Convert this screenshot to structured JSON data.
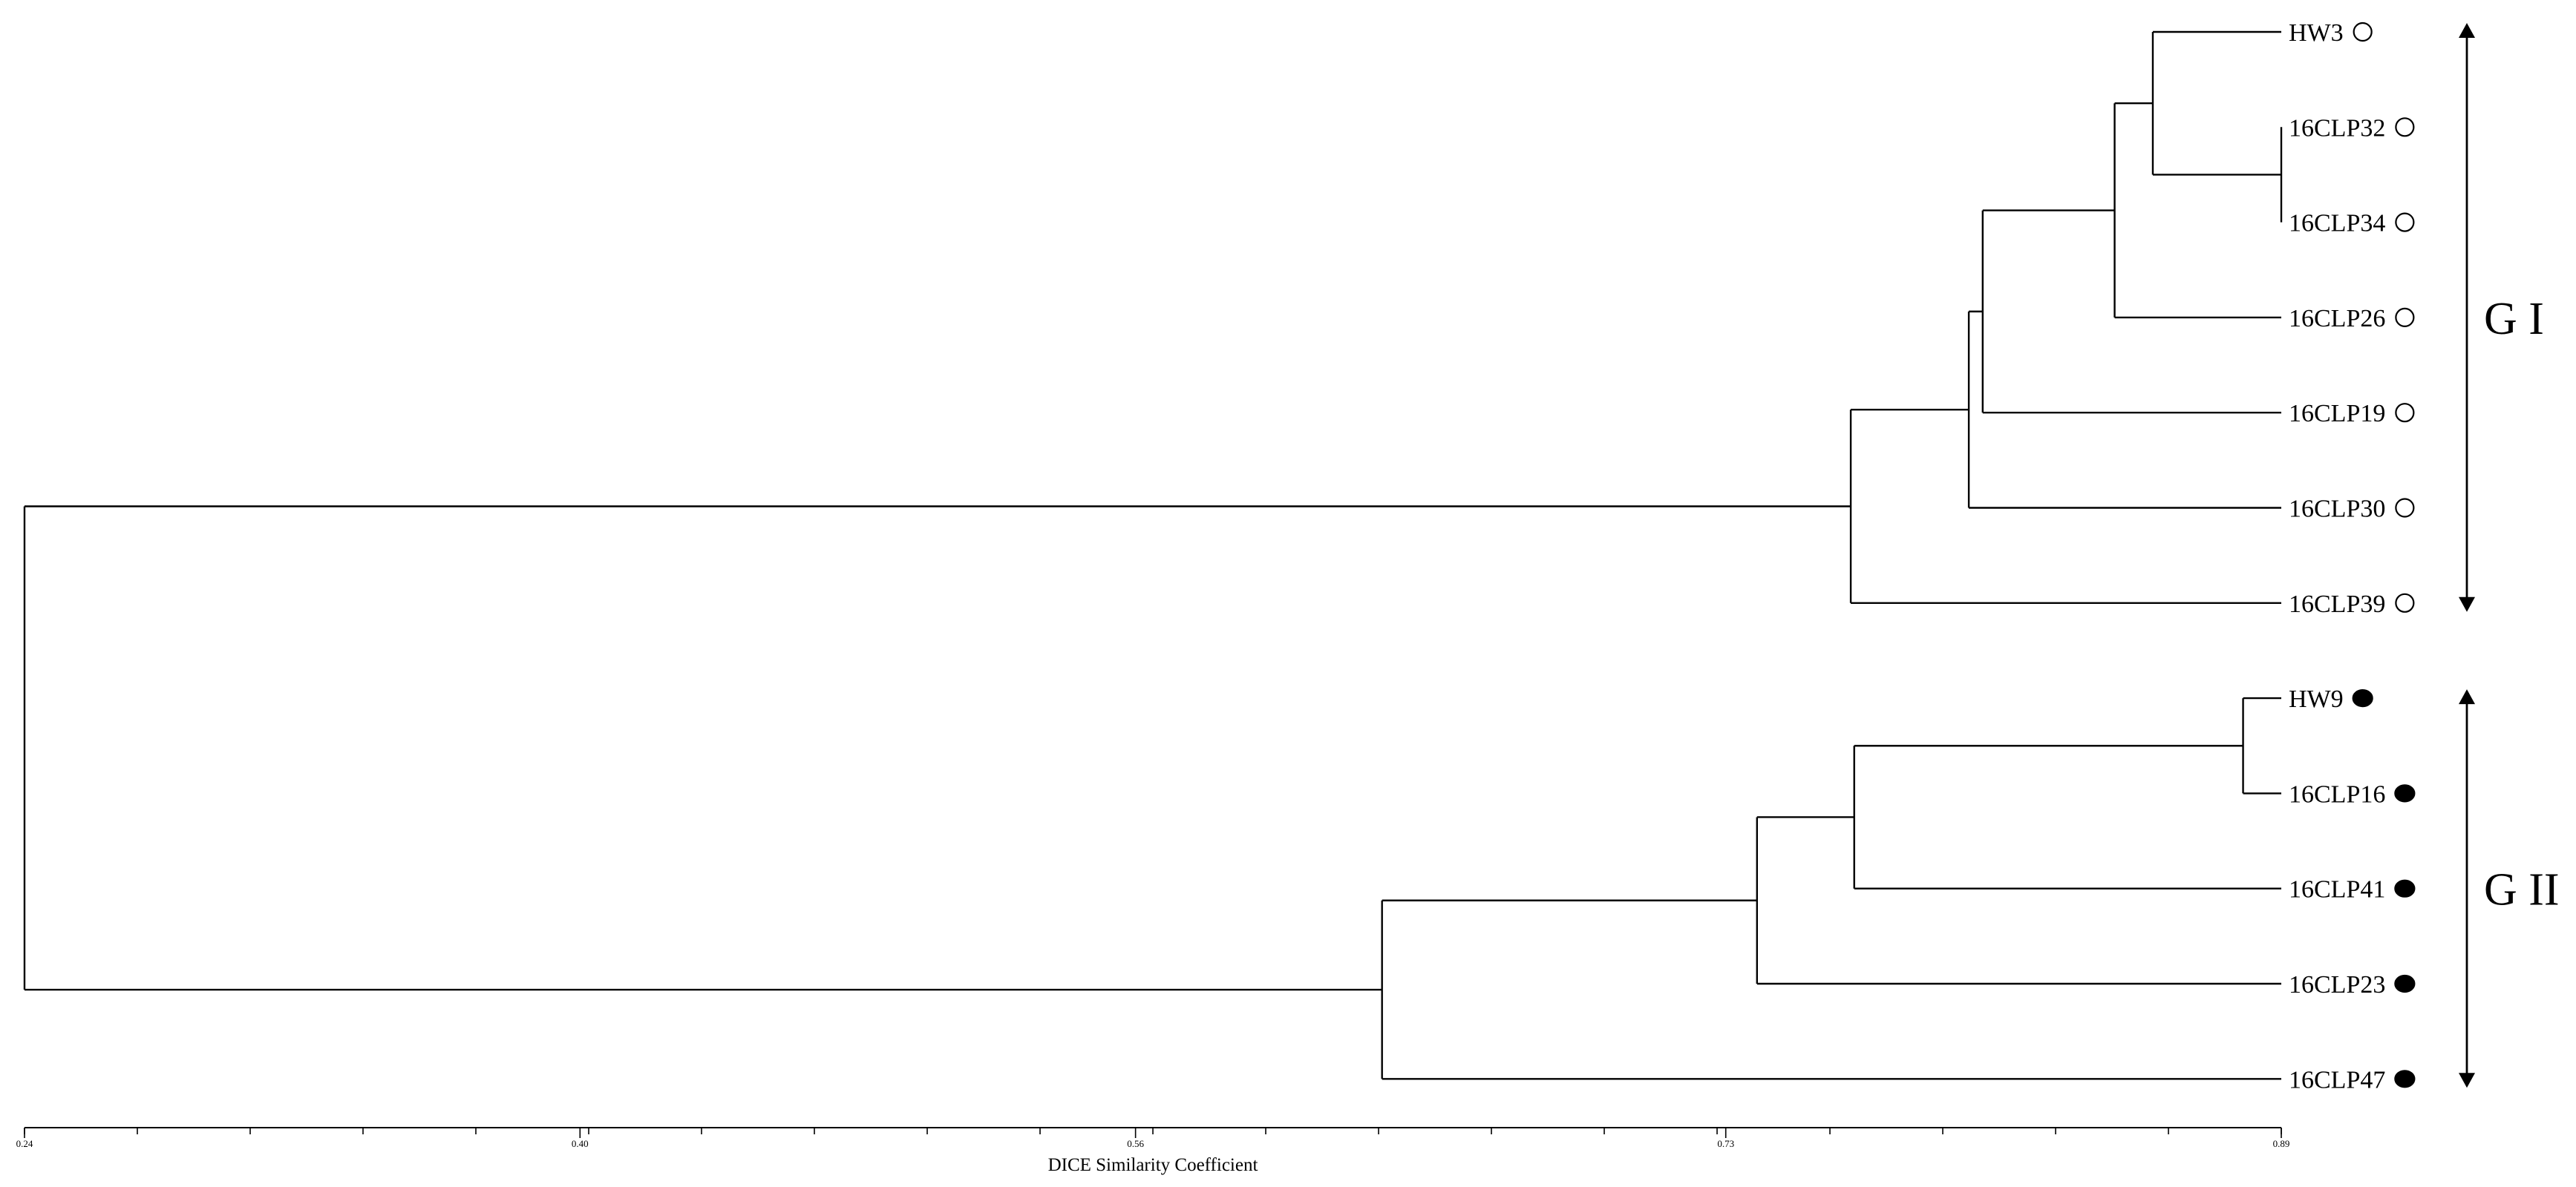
{
  "chart_data": {
    "type": "dendrogram",
    "xlabel": "DICE Similarity Coefficient",
    "xlim": [
      0.24,
      0.89
    ],
    "ticks": [
      "0.24",
      "0.40",
      "0.56",
      "0.73",
      "0.89"
    ],
    "tick_values": [
      0.24,
      0.4,
      0.56,
      0.73,
      0.89
    ],
    "minor_tick_step": 0.0325,
    "leaves": [
      {
        "name": "HW3",
        "marker": "open",
        "group": "G I"
      },
      {
        "name": "16CLP32",
        "marker": "open",
        "group": "G I"
      },
      {
        "name": "16CLP34",
        "marker": "open",
        "group": "G I"
      },
      {
        "name": "16CLP26",
        "marker": "open",
        "group": "G I"
      },
      {
        "name": "16CLP19",
        "marker": "open",
        "group": "G I"
      },
      {
        "name": "16CLP30",
        "marker": "open",
        "group": "G I"
      },
      {
        "name": "16CLP39",
        "marker": "open",
        "group": "G I"
      },
      {
        "name": "HW9",
        "marker": "filled",
        "group": "G II"
      },
      {
        "name": "16CLP16",
        "marker": "filled",
        "group": "G II"
      },
      {
        "name": "16CLP41",
        "marker": "filled",
        "group": "G II"
      },
      {
        "name": "16CLP23",
        "marker": "filled",
        "group": "G II"
      },
      {
        "name": "16CLP47",
        "marker": "filled",
        "group": "G II"
      }
    ],
    "merges": [
      {
        "id": "m1",
        "left": "16CLP32",
        "right": "16CLP34",
        "similarity": 0.89
      },
      {
        "id": "m2",
        "left": "HW3",
        "right": "m1",
        "similarity": 0.853
      },
      {
        "id": "m3",
        "left": "m2",
        "right": "16CLP26",
        "similarity": 0.842
      },
      {
        "id": "m4",
        "left": "m3",
        "right": "16CLP19",
        "similarity": 0.804
      },
      {
        "id": "m5",
        "left": "m4",
        "right": "16CLP30",
        "similarity": 0.8
      },
      {
        "id": "m6",
        "left": "m5",
        "right": "16CLP39",
        "similarity": 0.766
      },
      {
        "id": "m7",
        "left": "HW9",
        "right": "16CLP16",
        "similarity": 0.879
      },
      {
        "id": "m8",
        "left": "m7",
        "right": "16CLP41",
        "similarity": 0.767
      },
      {
        "id": "m9",
        "left": "m8",
        "right": "16CLP23",
        "similarity": 0.739
      },
      {
        "id": "m10",
        "left": "m9",
        "right": "16CLP47",
        "similarity": 0.631
      },
      {
        "id": "m11",
        "left": "m6",
        "right": "m10",
        "similarity": 0.24
      }
    ],
    "groups": [
      {
        "label": "G I",
        "first": "HW3",
        "last": "16CLP39"
      },
      {
        "label": "G II",
        "first": "HW9",
        "last": "16CLP47"
      }
    ]
  }
}
